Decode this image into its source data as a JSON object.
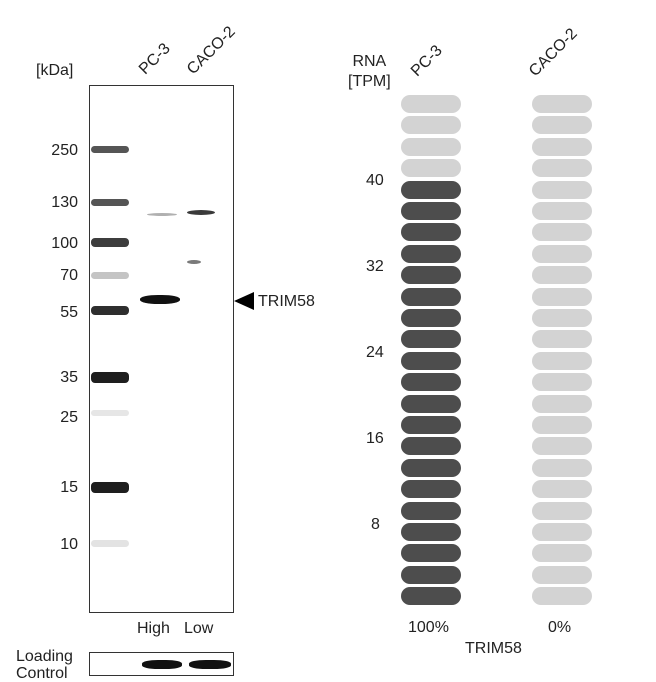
{
  "western_blot": {
    "unit_label": "[kDa]",
    "lane_labels": [
      "PC-3",
      "CACO-2"
    ],
    "mw_markers": [
      "250",
      "130",
      "100",
      "70",
      "55",
      "35",
      "25",
      "15",
      "10"
    ],
    "target_label": "TRIM58",
    "expression_labels": [
      "High",
      "Low"
    ],
    "loading_control_label": "Loading\nControl"
  },
  "rna": {
    "header": "RNA\n[TPM]",
    "sample_labels": [
      "PC-3",
      "CACO-2"
    ],
    "axis_ticks": [
      "40",
      "32",
      "24",
      "16",
      "8"
    ],
    "percentages": [
      "100%",
      "0%"
    ],
    "gene_label": "TRIM58",
    "pill_count": 24,
    "filled_pills": {
      "PC-3": 20,
      "CACO-2": 0
    },
    "colors": {
      "filled": "#4d4d4d",
      "empty": "#d3d3d3"
    }
  }
}
